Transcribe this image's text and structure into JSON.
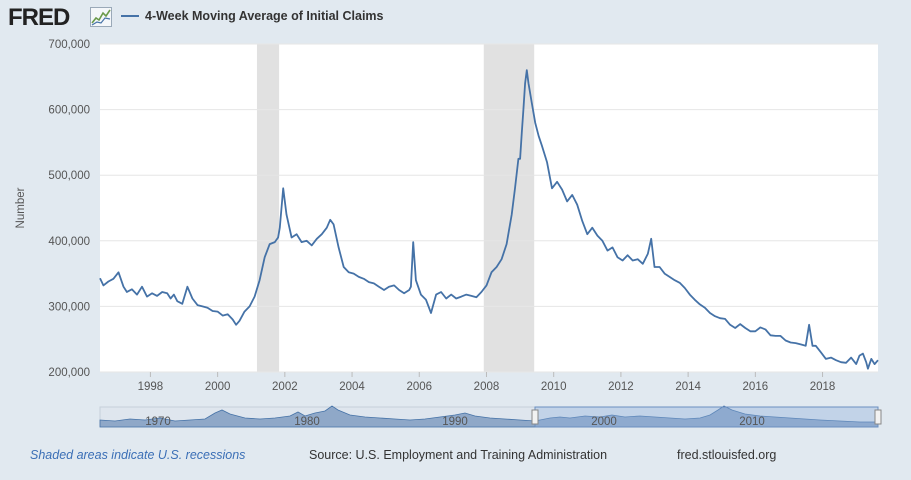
{
  "header": {
    "logo_text": "FRED",
    "logo_icon": "line-chart-icon",
    "series_title": "4-Week Moving Average of Initial Claims",
    "series_color": "#4572a7"
  },
  "chart_data": {
    "type": "line",
    "title": "4-Week Moving Average of Initial Claims",
    "xlabel": "",
    "ylabel": "Number",
    "xlim": [
      1996.5,
      2019.65
    ],
    "ylim": [
      200000,
      700000
    ],
    "yticks": [
      200000,
      300000,
      400000,
      500000,
      600000,
      700000
    ],
    "ytick_labels": [
      "200,000",
      "300,000",
      "400,000",
      "500,000",
      "600,000",
      "700,000"
    ],
    "xticks": [
      1998,
      2000,
      2002,
      2004,
      2006,
      2008,
      2010,
      2012,
      2014,
      2016,
      2018
    ],
    "xtick_labels": [
      "1998",
      "2000",
      "2002",
      "2004",
      "2006",
      "2008",
      "2010",
      "2012",
      "2014",
      "2016",
      "2018"
    ],
    "recessions": [
      [
        2001.17,
        2001.83
      ],
      [
        2007.92,
        2009.42
      ]
    ],
    "series": [
      {
        "name": "4-Week Moving Average of Initial Claims",
        "x": [
          1996.5,
          1996.6,
          1996.75,
          1996.9,
          1997.05,
          1997.2,
          1997.3,
          1997.45,
          1997.6,
          1997.75,
          1997.9,
          1998.05,
          1998.2,
          1998.35,
          1998.5,
          1998.6,
          1998.7,
          1998.8,
          1998.95,
          1999.1,
          1999.25,
          1999.4,
          1999.55,
          1999.7,
          1999.85,
          2000.0,
          2000.15,
          2000.3,
          2000.45,
          2000.55,
          2000.65,
          2000.8,
          2000.95,
          2001.1,
          2001.25,
          2001.4,
          2001.55,
          2001.7,
          2001.8,
          2001.85,
          2001.95,
          2002.05,
          2002.2,
          2002.35,
          2002.5,
          2002.65,
          2002.8,
          2002.95,
          2003.1,
          2003.25,
          2003.35,
          2003.45,
          2003.6,
          2003.75,
          2003.9,
          2004.05,
          2004.2,
          2004.35,
          2004.5,
          2004.65,
          2004.8,
          2004.95,
          2005.1,
          2005.25,
          2005.4,
          2005.55,
          2005.7,
          2005.75,
          2005.82,
          2005.9,
          2006.05,
          2006.2,
          2006.35,
          2006.5,
          2006.65,
          2006.8,
          2006.95,
          2007.1,
          2007.25,
          2007.4,
          2007.55,
          2007.7,
          2007.85,
          2008.0,
          2008.15,
          2008.3,
          2008.45,
          2008.6,
          2008.75,
          2008.85,
          2008.95,
          2009.0,
          2009.05,
          2009.1,
          2009.15,
          2009.2,
          2009.25,
          2009.35,
          2009.45,
          2009.55,
          2009.65,
          2009.8,
          2009.95,
          2010.1,
          2010.25,
          2010.4,
          2010.55,
          2010.7,
          2010.85,
          2011.0,
          2011.15,
          2011.3,
          2011.45,
          2011.6,
          2011.75,
          2011.9,
          2012.05,
          2012.2,
          2012.35,
          2012.5,
          2012.65,
          2012.8,
          2012.9,
          2013.0,
          2013.15,
          2013.3,
          2013.45,
          2013.6,
          2013.75,
          2013.9,
          2014.05,
          2014.2,
          2014.35,
          2014.5,
          2014.65,
          2014.8,
          2014.95,
          2015.1,
          2015.25,
          2015.4,
          2015.55,
          2015.7,
          2015.85,
          2016.0,
          2016.15,
          2016.3,
          2016.45,
          2016.6,
          2016.75,
          2016.9,
          2017.05,
          2017.2,
          2017.35,
          2017.5,
          2017.6,
          2017.7,
          2017.8,
          2017.95,
          2018.1,
          2018.25,
          2018.4,
          2018.55,
          2018.7,
          2018.85,
          2019.0,
          2019.1,
          2019.2,
          2019.3,
          2019.35,
          2019.45,
          2019.55,
          2019.65
        ],
        "values": [
          343000,
          332000,
          338000,
          342000,
          352000,
          330000,
          322000,
          326000,
          318000,
          330000,
          315000,
          320000,
          316000,
          322000,
          320000,
          312000,
          318000,
          308000,
          304000,
          330000,
          312000,
          302000,
          300000,
          298000,
          293000,
          292000,
          286000,
          288000,
          280000,
          272000,
          278000,
          292000,
          300000,
          315000,
          340000,
          375000,
          395000,
          398000,
          405000,
          420000,
          480000,
          440000,
          405000,
          410000,
          398000,
          400000,
          393000,
          403000,
          410000,
          420000,
          432000,
          425000,
          390000,
          360000,
          352000,
          350000,
          345000,
          342000,
          337000,
          335000,
          330000,
          325000,
          330000,
          332000,
          325000,
          320000,
          325000,
          330000,
          398000,
          340000,
          318000,
          310000,
          290000,
          318000,
          322000,
          312000,
          318000,
          312000,
          315000,
          318000,
          316000,
          314000,
          322000,
          332000,
          352000,
          360000,
          372000,
          395000,
          440000,
          480000,
          525000,
          525000,
          565000,
          600000,
          640000,
          660000,
          640000,
          610000,
          580000,
          560000,
          545000,
          520000,
          480000,
          490000,
          478000,
          460000,
          470000,
          455000,
          430000,
          410000,
          420000,
          408000,
          400000,
          385000,
          390000,
          375000,
          370000,
          378000,
          370000,
          372000,
          365000,
          380000,
          403000,
          360000,
          360000,
          350000,
          345000,
          340000,
          336000,
          328000,
          318000,
          310000,
          303000,
          298000,
          290000,
          285000,
          282000,
          281000,
          272000,
          267000,
          273000,
          267000,
          262000,
          262000,
          268000,
          265000,
          256000,
          255000,
          255000,
          248000,
          245000,
          244000,
          242000,
          240000,
          272000,
          240000,
          240000,
          230000,
          220000,
          222000,
          218000,
          215000,
          214000,
          222000,
          212000,
          225000,
          228000,
          215000,
          205000,
          220000,
          212000,
          218000
        ]
      }
    ]
  },
  "navigator": {
    "labels": [
      "1970",
      "1980",
      "1990",
      "2000",
      "2010"
    ]
  },
  "footer": {
    "recession_note": "Shaded areas indicate U.S. recessions",
    "source": "Source: U.S. Employment and Training Administration",
    "site": "fred.stlouisfed.org"
  }
}
